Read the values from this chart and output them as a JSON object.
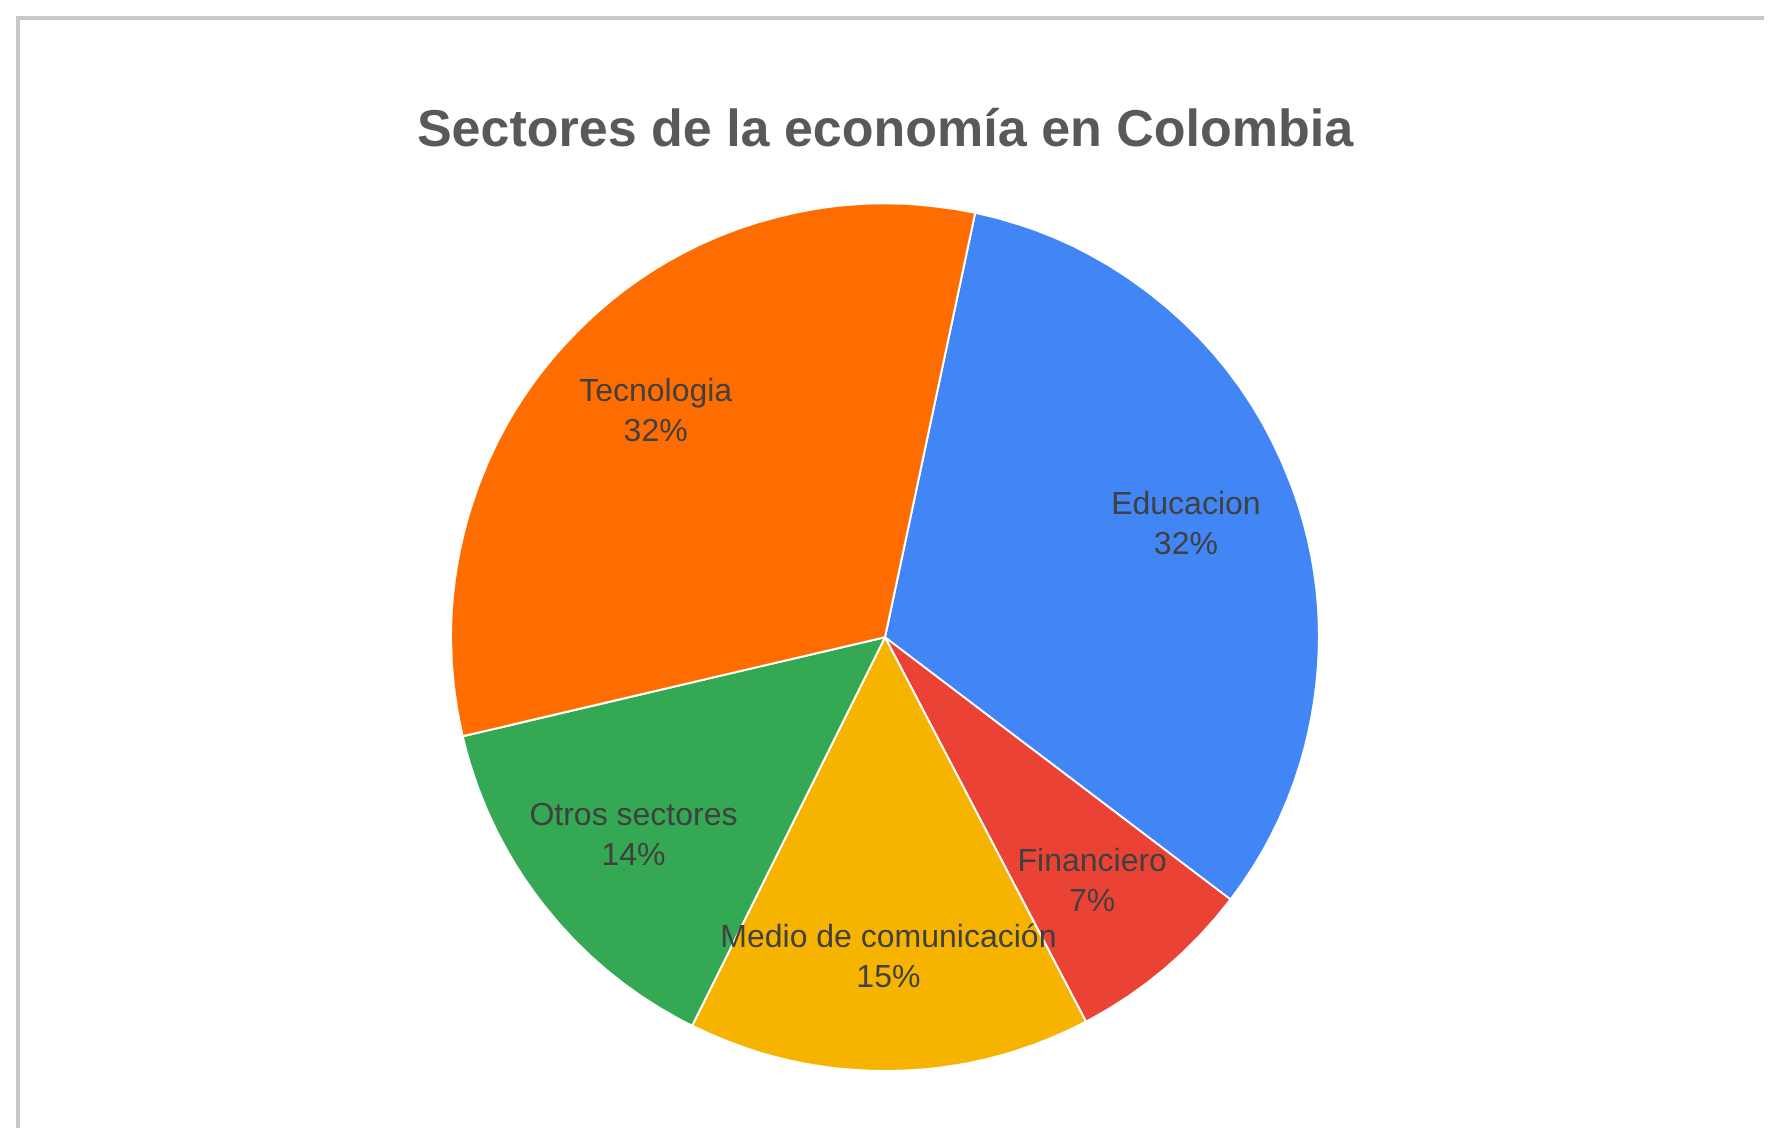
{
  "chart_data": {
    "type": "pie",
    "title": "Sectores de la economía en Colombia",
    "categories": [
      "Educacion",
      "Financiero",
      "Medio de comunicación",
      "Otros sectores",
      "Tecnologia"
    ],
    "values": [
      32,
      7,
      15,
      14,
      32
    ],
    "colors": [
      "#4285f4",
      "#ea4335",
      "#f6b400",
      "#34a853",
      "#ff6d00"
    ],
    "value_labels": [
      "32%",
      "7%",
      "15%",
      "14%",
      "32%"
    ],
    "legend": false
  }
}
